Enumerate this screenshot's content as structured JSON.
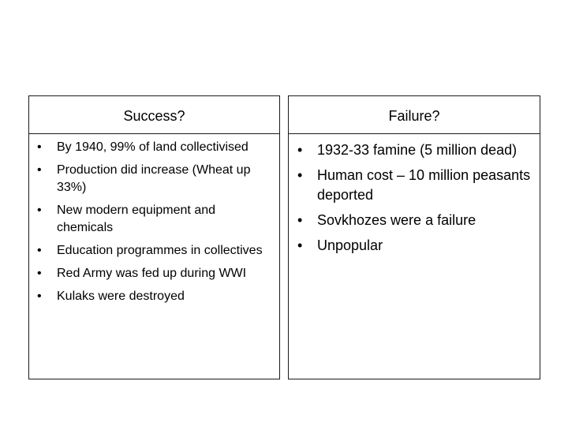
{
  "slide": {
    "success": {
      "title": "Success?",
      "bullet_glyph": "•",
      "items": [
        "By 1940, 99% of land collectivised",
        "Production did increase (Wheat up 33%)",
        "New modern equipment and chemicals",
        "Education programmes in collectives",
        "Red Army was fed up during WWI",
        "Kulaks were destroyed"
      ]
    },
    "failure": {
      "title": "Failure?",
      "bullet_glyph": "•",
      "items": [
        "1932-33 famine (5 million dead)",
        "Human cost – 10 million peasants deported",
        "Sovkhozes were a failure",
        "Unpopular"
      ]
    }
  },
  "colors": {
    "border": "#1a1a1a",
    "text": "#000000",
    "background": "#ffffff"
  }
}
